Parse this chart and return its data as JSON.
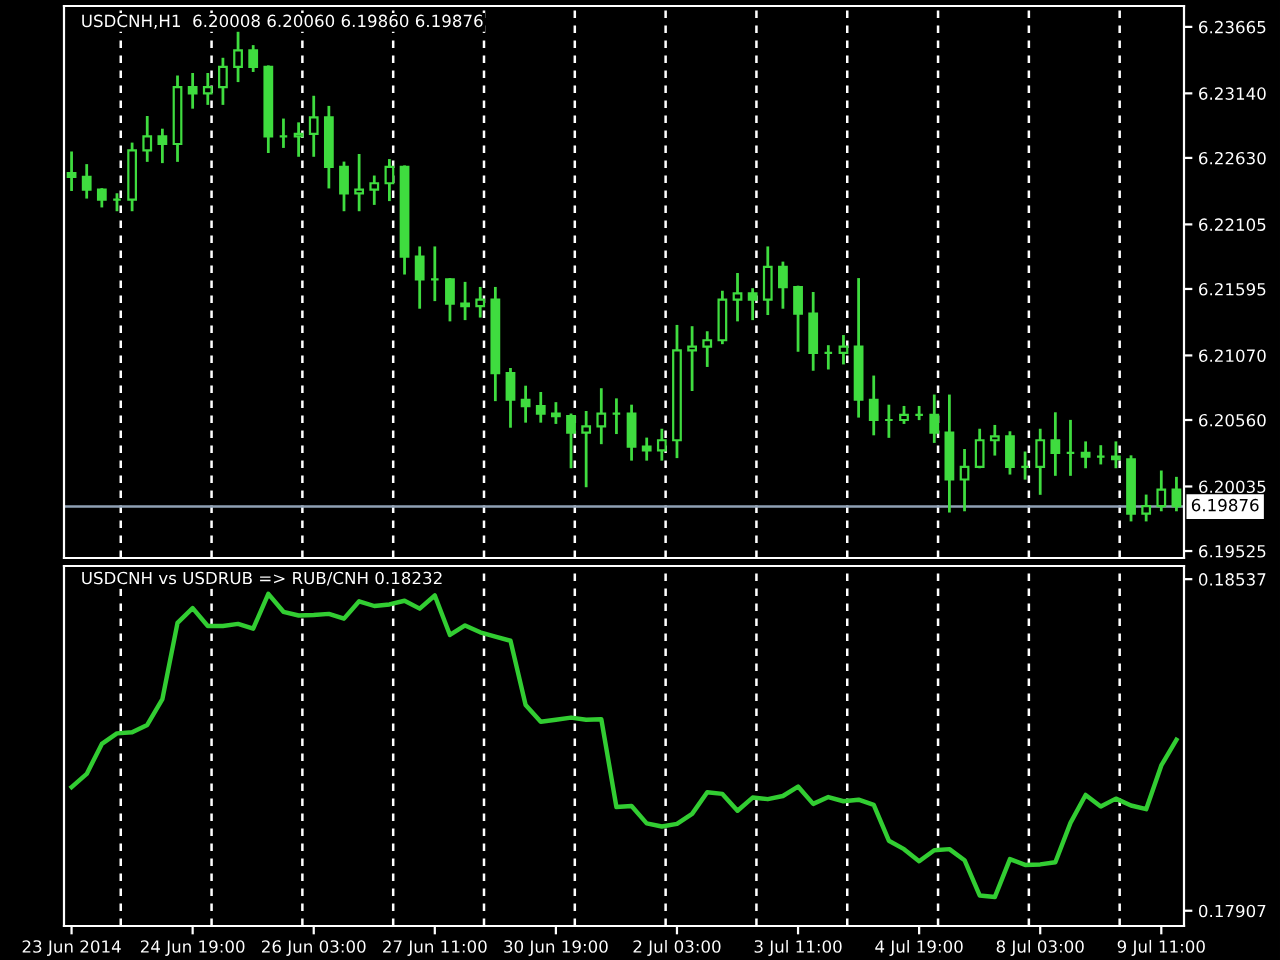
{
  "chart_data": [
    {
      "type": "candlestick",
      "title": "USDCNH,H1  6.20008 6.20060 6.19860 6.19876",
      "color": "#3fdc3f",
      "categories": [
        null,
        null,
        null,
        null,
        null,
        null,
        null,
        null,
        null,
        null,
        null,
        null,
        null,
        null,
        null,
        null,
        null,
        null,
        null,
        null,
        null,
        null,
        null,
        null,
        null,
        null,
        null,
        null,
        null,
        null,
        null,
        null,
        null,
        null,
        null,
        null,
        null,
        null,
        null,
        null,
        null,
        null,
        null,
        null,
        null,
        null,
        null,
        null,
        null,
        null,
        null,
        null,
        null,
        null,
        null,
        null,
        null,
        null,
        null,
        null,
        null,
        null,
        null,
        null,
        null,
        null,
        null,
        null,
        null,
        null,
        null,
        null,
        null,
        null
      ],
      "ohlc": [
        [
          6.2251,
          6.2267,
          6.2238,
          6.2248
        ],
        [
          6.2248,
          6.2257,
          6.2232,
          6.2238
        ],
        [
          6.2238,
          6.2238,
          6.2225,
          6.223
        ],
        [
          6.223,
          6.2234,
          6.2222,
          6.223
        ],
        [
          6.223,
          6.2274,
          6.2222,
          6.2269
        ],
        [
          6.2269,
          6.2295,
          6.2261,
          6.228
        ],
        [
          6.228,
          6.2285,
          6.226,
          6.2274
        ],
        [
          6.2274,
          6.2327,
          6.2261,
          6.2319
        ],
        [
          6.2319,
          6.2329,
          6.2303,
          6.2314
        ],
        [
          6.2314,
          6.2329,
          6.2306,
          6.2319
        ],
        [
          6.2319,
          6.2341,
          6.2306,
          6.2335
        ],
        [
          6.2335,
          6.2362,
          6.2324,
          6.2348
        ],
        [
          6.2348,
          6.2351,
          6.2332,
          6.2335
        ],
        [
          6.2335,
          6.2335,
          6.2268,
          6.228
        ],
        [
          6.228,
          6.2293,
          6.2272,
          6.228
        ],
        [
          6.228,
          6.229,
          6.2265,
          6.2282
        ],
        [
          6.2282,
          6.2311,
          6.2265,
          6.2295
        ],
        [
          6.2295,
          6.2303,
          6.224,
          6.2256
        ],
        [
          6.2256,
          6.2259,
          6.2222,
          6.2235
        ],
        [
          6.2235,
          6.2265,
          6.2222,
          6.2238
        ],
        [
          6.2238,
          6.2248,
          6.2227,
          6.2243
        ],
        [
          6.2243,
          6.2261,
          6.223,
          6.2256
        ],
        [
          6.2256,
          6.2256,
          6.2172,
          6.2185
        ],
        [
          6.2185,
          6.2192,
          6.2145,
          6.2167
        ],
        [
          6.2167,
          6.2192,
          6.2151,
          6.2167
        ],
        [
          6.2167,
          6.2167,
          6.2135,
          6.2148
        ],
        [
          6.2148,
          6.2164,
          6.2136,
          6.2146
        ],
        [
          6.2146,
          6.216,
          6.2138,
          6.2151
        ],
        [
          6.2151,
          6.216,
          6.2072,
          6.2093
        ],
        [
          6.2093,
          6.2096,
          6.2051,
          6.2072
        ],
        [
          6.2072,
          6.2082,
          6.2055,
          6.2067
        ],
        [
          6.2067,
          6.2077,
          6.2055,
          6.2061
        ],
        [
          6.2061,
          6.2069,
          6.2054,
          6.2059
        ],
        [
          6.2059,
          6.206,
          6.2019,
          6.2046
        ],
        [
          6.2046,
          6.2062,
          6.2004,
          6.2051
        ],
        [
          6.2051,
          6.208,
          6.2038,
          6.2061
        ],
        [
          6.2061,
          6.2072,
          6.2046,
          6.2061
        ],
        [
          6.2061,
          6.2067,
          6.2025,
          6.2035
        ],
        [
          6.2035,
          6.2041,
          6.2025,
          6.2032
        ],
        [
          6.2032,
          6.2048,
          6.2025,
          6.204
        ],
        [
          6.204,
          6.213,
          6.2027,
          6.2111
        ],
        [
          6.2111,
          6.2129,
          6.208,
          6.2114
        ],
        [
          6.2114,
          6.2125,
          6.2099,
          6.2119
        ],
        [
          6.2119,
          6.2157,
          6.2117,
          6.2151
        ],
        [
          6.2151,
          6.2171,
          6.2135,
          6.2156
        ],
        [
          6.2156,
          6.2159,
          6.2136,
          6.2151
        ],
        [
          6.2151,
          6.2192,
          6.214,
          6.2177
        ],
        [
          6.2177,
          6.218,
          6.2145,
          6.2161
        ],
        [
          6.2161,
          6.2161,
          6.2111,
          6.214
        ],
        [
          6.214,
          6.2156,
          6.2096,
          6.2109
        ],
        [
          6.2109,
          6.2114,
          6.2097,
          6.2109
        ],
        [
          6.2109,
          6.2122,
          6.2101,
          6.2114
        ],
        [
          6.2114,
          6.2167,
          6.2059,
          6.2072
        ],
        [
          6.2072,
          6.209,
          6.2045,
          6.2056
        ],
        [
          6.2056,
          6.2067,
          6.2043,
          6.2056
        ],
        [
          6.2056,
          6.2066,
          6.2054,
          6.206
        ],
        [
          6.206,
          6.2066,
          6.2057,
          6.206
        ],
        [
          6.206,
          6.2075,
          6.2039,
          6.2046
        ],
        [
          6.2046,
          6.2075,
          6.1984,
          6.2009
        ],
        [
          6.2009,
          6.2032,
          6.1985,
          6.2019
        ],
        [
          6.2019,
          6.2048,
          6.2019,
          6.204
        ],
        [
          6.204,
          6.2051,
          6.2029,
          6.2043
        ],
        [
          6.2043,
          6.2046,
          6.2014,
          6.2019
        ],
        [
          6.2019,
          6.203,
          6.201,
          6.2019
        ],
        [
          6.2019,
          6.2048,
          6.1998,
          6.204
        ],
        [
          6.204,
          6.2061,
          6.2013,
          6.203
        ],
        [
          6.203,
          6.2055,
          6.2013,
          6.203
        ],
        [
          6.203,
          6.2038,
          6.2019,
          6.2027
        ],
        [
          6.2027,
          6.2035,
          6.2022,
          6.2027
        ],
        [
          6.2027,
          6.2038,
          6.2019,
          6.2025
        ],
        [
          6.2025,
          6.2027,
          6.1977,
          6.1982
        ],
        [
          6.1982,
          6.1996,
          6.1977,
          6.1988
        ],
        [
          6.1988,
          6.2015,
          6.1985,
          6.2001
        ],
        [
          6.2001,
          6.201,
          6.1985,
          6.1988
        ]
      ],
      "ylim": [
        6.1947,
        6.2383
      ],
      "yticks": [
        6.23665,
        {
          "value": 6.2314,
          "label": "6.23140"
        },
        {
          "value": 6.2263,
          "label": "6.22630"
        },
        6.22105,
        6.21595,
        {
          "value": 6.2107,
          "label": "6.21070"
        },
        {
          "value": 6.2056,
          "label": "6.20560"
        },
        6.20035,
        6.19525
      ],
      "ref_lines": [
        {
          "axis": "y",
          "value": 6.19876,
          "label": "6.19876",
          "color": "#8fa0b4",
          "line_style": "solid"
        }
      ]
    },
    {
      "type": "line",
      "title": "USDCNH vs USDRUB => RUB/CNH 0.18232",
      "categories": [
        "23 Jun 2014",
        null,
        null,
        null,
        null,
        null,
        null,
        null,
        "24 Jun 19:00",
        null,
        null,
        null,
        null,
        null,
        null,
        null,
        "26 Jun 03:00",
        null,
        null,
        null,
        null,
        null,
        null,
        null,
        "27 Jun 11:00",
        null,
        null,
        null,
        null,
        null,
        null,
        null,
        "30 Jun 19:00",
        null,
        null,
        null,
        null,
        null,
        null,
        null,
        "2 Jul 03:00",
        null,
        null,
        null,
        null,
        null,
        null,
        null,
        "3 Jul 11:00",
        null,
        null,
        null,
        null,
        null,
        null,
        null,
        "4 Jul 19:00",
        null,
        null,
        null,
        null,
        null,
        null,
        null,
        "8 Jul 03:00",
        null,
        null,
        null,
        null,
        null,
        null,
        null,
        "9 Jul 11:00",
        null
      ],
      "series": [
        {
          "color": "#32cd32",
          "values": [
            0.18142,
            0.18167,
            0.18224,
            0.18244,
            0.18246,
            0.1826,
            0.18309,
            0.18454,
            0.18482,
            0.18448,
            0.18448,
            0.18452,
            0.18443,
            0.18509,
            0.18475,
            0.18468,
            0.18469,
            0.18471,
            0.18462,
            0.18495,
            0.18486,
            0.18489,
            0.18496,
            0.18481,
            0.18506,
            0.18431,
            0.18449,
            0.18436,
            0.18428,
            0.1842,
            0.18298,
            0.18266,
            0.1827,
            0.18274,
            0.1827,
            0.18271,
            0.18104,
            0.18106,
            0.18073,
            0.18067,
            0.18072,
            0.18091,
            0.18132,
            0.18129,
            0.18097,
            0.18122,
            0.18119,
            0.18125,
            0.18143,
            0.1811,
            0.18123,
            0.18115,
            0.18118,
            0.18108,
            0.1804,
            0.18024,
            0.18001,
            0.18022,
            0.18024,
            0.18003,
            0.17936,
            0.17933,
            0.18005,
            0.17994,
            0.17995,
            0.17999,
            0.18074,
            0.18127,
            0.18105,
            0.1812,
            0.18107,
            0.181,
            0.18183,
            0.18232
          ]
        }
      ],
      "ylim": [
        0.17878,
        0.18562
      ],
      "yticks": [
        0.18537,
        0.17907
      ]
    }
  ]
}
